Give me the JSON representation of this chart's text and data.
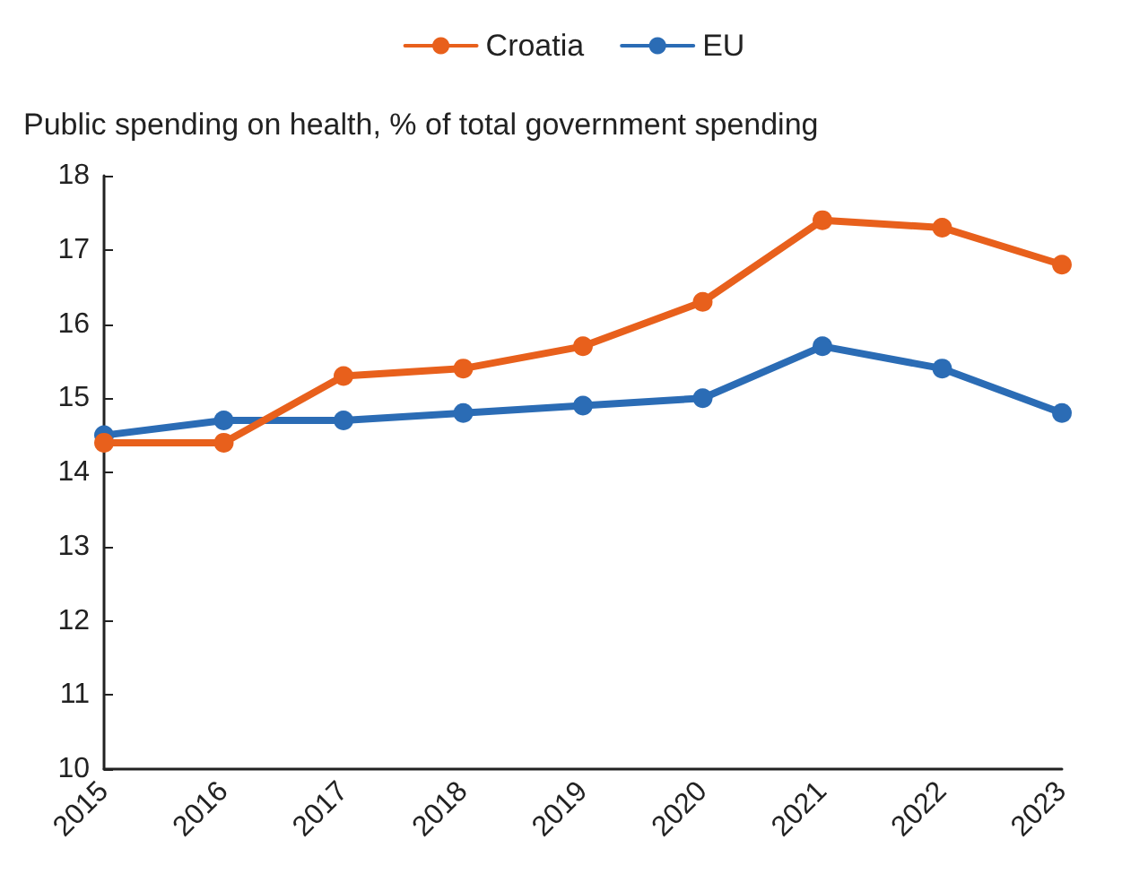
{
  "chart_data": {
    "type": "line",
    "ylabel": "Public spending on health, % of total government spending",
    "categories": [
      "2015",
      "2016",
      "2017",
      "2018",
      "2019",
      "2020",
      "2021",
      "2022",
      "2023"
    ],
    "series": [
      {
        "name": "Croatia",
        "color": "#e8601c",
        "values": [
          14.4,
          14.4,
          15.3,
          15.4,
          15.7,
          16.3,
          17.4,
          17.3,
          16.8
        ]
      },
      {
        "name": "EU",
        "color": "#2b6cb5",
        "values": [
          14.5,
          14.7,
          14.7,
          14.8,
          14.9,
          15.0,
          15.7,
          15.4,
          14.8
        ]
      }
    ],
    "ylim": [
      10,
      18
    ],
    "yticks": [
      10,
      11,
      12,
      13,
      14,
      15,
      16,
      17,
      18
    ],
    "grid": false,
    "legend": "top",
    "marker": "circle",
    "line_style": "solid"
  }
}
